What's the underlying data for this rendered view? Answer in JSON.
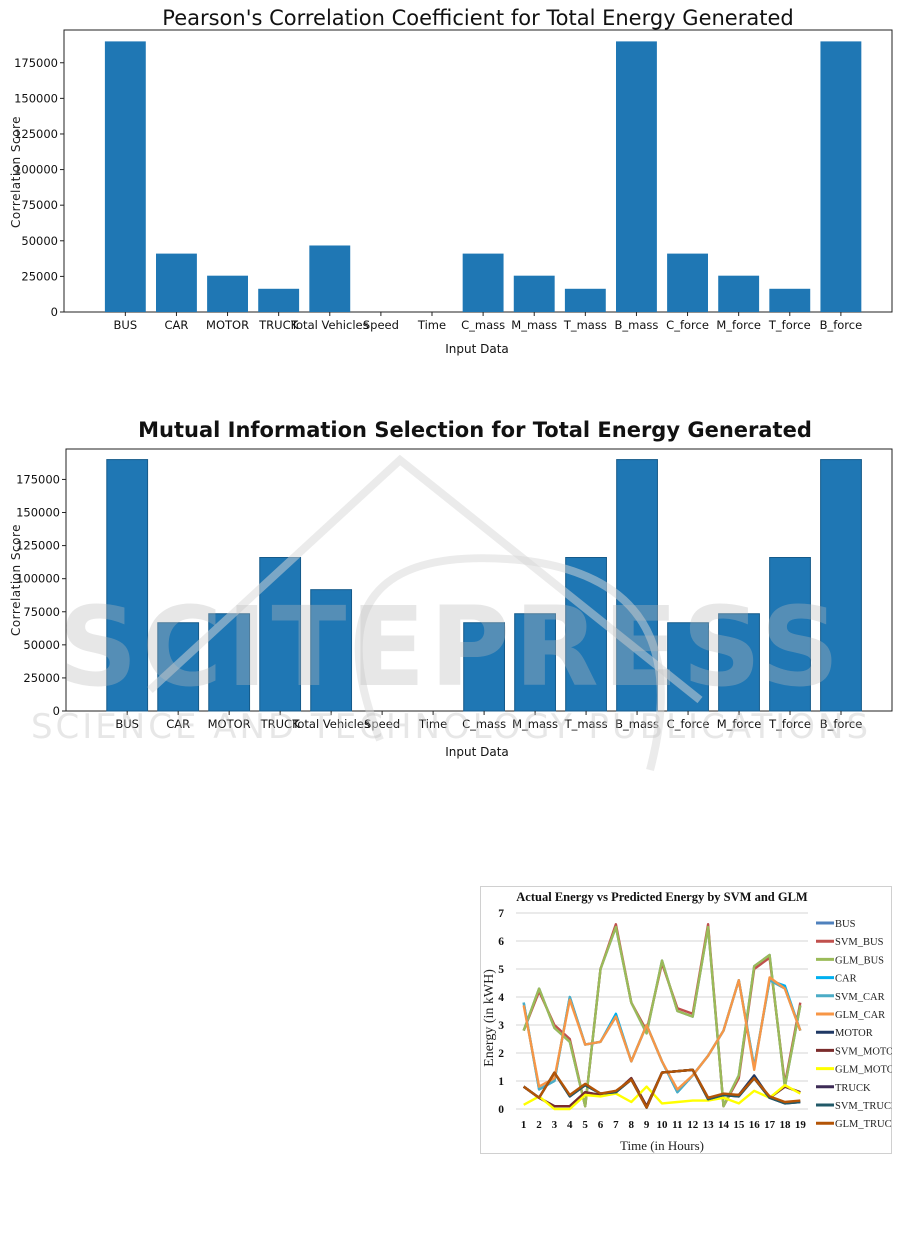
{
  "chart_data": [
    {
      "type": "bar",
      "title": "Pearson's Correlation Coefficient for Total Energy Generated",
      "xlabel": "Input Data",
      "ylabel": "Correlation Score",
      "ylim": [
        0,
        198000
      ],
      "yticks": [
        0,
        25000,
        50000,
        75000,
        100000,
        125000,
        150000,
        175000
      ],
      "grid": false,
      "color": "#1f77b4",
      "categories": [
        "BUS",
        "CAR",
        "MOTOR",
        "TRUCK",
        "Total Vehicles",
        "Speed",
        "Time",
        "C_mass",
        "M_mass",
        "T_mass",
        "B_mass",
        "C_force",
        "M_force",
        "T_force",
        "B_force"
      ],
      "values": [
        190000,
        41000,
        25500,
        16300,
        46700,
        0,
        0,
        41000,
        25500,
        16300,
        190000,
        41000,
        25500,
        16300,
        190000
      ]
    },
    {
      "type": "bar",
      "title": "Mutual Information Selection for Total Energy Generated",
      "xlabel": "Input Data",
      "ylabel": "Correlation Score",
      "ylim": [
        0,
        198000
      ],
      "yticks": [
        0,
        25000,
        50000,
        75000,
        100000,
        125000,
        150000,
        175000
      ],
      "grid": false,
      "color": "#1f77b4",
      "categories": [
        "BUS",
        "CAR",
        "MOTOR",
        "TRUCK",
        "Total Vehicles",
        "Speed",
        "Time",
        "C_mass",
        "M_mass",
        "T_mass",
        "B_mass",
        "C_force",
        "M_force",
        "T_force",
        "B_force"
      ],
      "values": [
        190000,
        66700,
        73500,
        116000,
        91700,
        0,
        0,
        66700,
        73500,
        116000,
        190000,
        66700,
        73500,
        116000,
        190000
      ]
    },
    {
      "type": "line",
      "title": "Actual Energy vs Predicted Energy by SVM and GLM",
      "xlabel": "Time (in Hours)",
      "ylabel": "Energy  (in kWH)",
      "ylim": [
        0,
        7
      ],
      "yticks": [
        0,
        1,
        2,
        3,
        4,
        5,
        6,
        7
      ],
      "grid": true,
      "legend": "right",
      "x": [
        1,
        2,
        3,
        4,
        5,
        6,
        7,
        8,
        9,
        10,
        11,
        12,
        13,
        14,
        15,
        16,
        17,
        18,
        19
      ],
      "series": [
        {
          "name": "BUS",
          "color": "#4f81bd",
          "values": [
            2.8,
            4.3,
            2.9,
            2.4,
            0.1,
            5.0,
            6.5,
            3.8,
            2.7,
            5.3,
            3.5,
            3.3,
            6.5,
            0.1,
            1.2,
            5.1,
            5.5,
            0.8,
            3.7
          ]
        },
        {
          "name": "SVM_BUS",
          "color": "#c0504d",
          "values": [
            2.8,
            4.2,
            3.0,
            2.5,
            0.1,
            5.0,
            6.6,
            3.8,
            2.8,
            5.2,
            3.6,
            3.4,
            6.6,
            0.1,
            1.1,
            5.0,
            5.4,
            0.9,
            3.8
          ]
        },
        {
          "name": "GLM_BUS",
          "color": "#9bbb59",
          "values": [
            2.8,
            4.3,
            2.9,
            2.4,
            0.1,
            5.0,
            6.5,
            3.8,
            2.7,
            5.3,
            3.5,
            3.3,
            6.5,
            0.1,
            1.2,
            5.1,
            5.5,
            0.8,
            3.7
          ]
        },
        {
          "name": "CAR",
          "color": "#00b0f0",
          "values": [
            3.8,
            0.7,
            1.0,
            4.0,
            2.3,
            2.4,
            3.4,
            1.7,
            3.0,
            1.7,
            0.6,
            1.2,
            1.9,
            2.8,
            4.6,
            1.5,
            4.6,
            4.4,
            2.8
          ]
        },
        {
          "name": "SVM_CAR",
          "color": "#4bacc6",
          "values": [
            3.8,
            0.7,
            1.0,
            4.0,
            2.3,
            2.4,
            3.3,
            1.7,
            3.0,
            1.7,
            0.6,
            1.2,
            1.9,
            2.8,
            4.6,
            1.5,
            4.6,
            4.3,
            2.8
          ]
        },
        {
          "name": "GLM_CAR",
          "color": "#f79646",
          "values": [
            3.7,
            0.8,
            1.1,
            3.9,
            2.3,
            2.4,
            3.3,
            1.7,
            3.0,
            1.7,
            0.7,
            1.2,
            1.9,
            2.8,
            4.6,
            1.4,
            4.7,
            4.3,
            2.8
          ]
        },
        {
          "name": "MOTOR",
          "color": "#1f3864",
          "values": [
            0.8,
            0.4,
            0.1,
            0.1,
            0.6,
            0.5,
            0.6,
            1.1,
            0.1,
            1.3,
            1.35,
            1.4,
            0.4,
            0.5,
            0.5,
            1.2,
            0.4,
            0.8,
            0.6
          ]
        },
        {
          "name": "SVM_MOTOR",
          "color": "#7b2c2c",
          "values": [
            0.8,
            0.4,
            0.1,
            0.1,
            0.6,
            0.5,
            0.6,
            1.1,
            0.1,
            1.3,
            1.35,
            1.4,
            0.4,
            0.5,
            0.5,
            1.1,
            0.4,
            0.8,
            0.6
          ]
        },
        {
          "name": "GLM_MOTOR",
          "color": "#ffff00",
          "values": [
            0.15,
            0.45,
            0.0,
            0.0,
            0.5,
            0.45,
            0.55,
            0.25,
            0.8,
            0.2,
            0.25,
            0.3,
            0.3,
            0.4,
            0.2,
            0.65,
            0.4,
            0.85,
            0.55
          ]
        },
        {
          "name": "TRUCK",
          "color": "#3d2b56",
          "values": [
            0.8,
            0.4,
            1.3,
            0.45,
            0.85,
            0.55,
            0.6,
            1.05,
            0.05,
            1.3,
            1.35,
            1.4,
            0.35,
            0.5,
            0.45,
            1.1,
            0.4,
            0.2,
            0.25
          ]
        },
        {
          "name": "SVM_TRUCK",
          "color": "#215968",
          "values": [
            0.8,
            0.4,
            1.3,
            0.45,
            0.85,
            0.55,
            0.6,
            1.05,
            0.05,
            1.3,
            1.35,
            1.4,
            0.35,
            0.5,
            0.45,
            1.1,
            0.4,
            0.2,
            0.25
          ]
        },
        {
          "name": "GLM_TRUCK",
          "color": "#b35406",
          "values": [
            0.8,
            0.4,
            1.3,
            0.5,
            0.9,
            0.55,
            0.65,
            1.05,
            0.05,
            1.3,
            1.35,
            1.4,
            0.4,
            0.55,
            0.5,
            1.1,
            0.45,
            0.25,
            0.3
          ]
        }
      ]
    }
  ],
  "watermark": {
    "line1": "SCITEPRESS",
    "line2": "SCIENCE AND TECHNOLOGY PUBLICATIONS"
  }
}
